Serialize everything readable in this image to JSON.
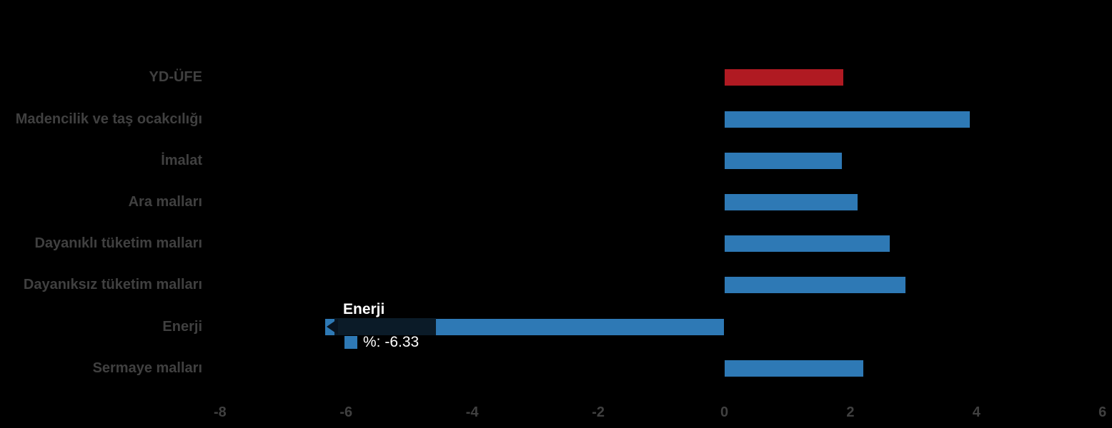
{
  "chart_data": {
    "type": "bar",
    "orientation": "horizontal",
    "title": "",
    "xlabel": "",
    "ylabel": "",
    "categories": [
      "YD-ÜFE",
      "Madencilik ve taş ocakcılığı",
      "İmalat",
      "Ara malları",
      "Dayanıklı tüketim malları",
      "Dayanıksız tüketim malları",
      "Enerji",
      "Sermaye malları"
    ],
    "values": [
      1.89,
      3.89,
      1.86,
      2.11,
      2.63,
      2.87,
      -6.33,
      2.2
    ],
    "bar_colors": [
      "#b01a22",
      "#2e79b5",
      "#2e79b5",
      "#2e79b5",
      "#2e79b5",
      "#2e79b5",
      "#2e79b5",
      "#2e79b5"
    ],
    "value_unit": "%",
    "xlim": [
      -8,
      6
    ],
    "x_ticks": [
      -8,
      -6,
      -4,
      -2,
      0,
      2,
      4,
      6
    ],
    "grid": false,
    "legend": false,
    "background_color": "#000000",
    "label_color": "#404040"
  },
  "tooltip": {
    "title": "Enerji",
    "series_label": "%",
    "value": -6.33,
    "display": "%: -6.33",
    "swatch_color": "#2e79b5",
    "background": "#0b1b28",
    "arrow_color": "#08131f",
    "text_color": "#ffffff"
  }
}
